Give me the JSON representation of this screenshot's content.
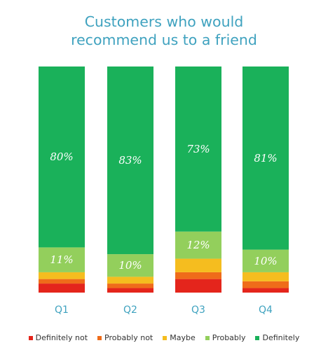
{
  "chart_data": {
    "type": "bar",
    "stacked": true,
    "percent": true,
    "title_lines": [
      "Customers who would",
      "recommend us to a friend"
    ],
    "categories": [
      "Q1",
      "Q2",
      "Q3",
      "Q4"
    ],
    "series": [
      {
        "name": "Definitely not",
        "color": "#e4251c",
        "values": [
          4,
          2,
          6,
          2
        ]
      },
      {
        "name": "Probably not",
        "color": "#ef6c1a",
        "values": [
          2,
          2,
          3,
          3
        ]
      },
      {
        "name": "Maybe",
        "color": "#f5bd1f",
        "values": [
          3,
          3,
          6,
          4
        ]
      },
      {
        "name": "Probably",
        "color": "#93cf5c",
        "values": [
          11,
          10,
          12,
          10
        ]
      },
      {
        "name": "Definitely",
        "color": "#1ab15a",
        "values": [
          80,
          83,
          73,
          81
        ]
      }
    ],
    "data_labels": [
      {
        "series": "Probably",
        "labels": [
          "11%",
          "10%",
          "12%",
          "10%"
        ]
      },
      {
        "series": "Definitely",
        "labels": [
          "80%",
          "83%",
          "73%",
          "81%"
        ]
      }
    ],
    "ylim": [
      0,
      100
    ],
    "legend_position": "bottom",
    "grid": false
  }
}
